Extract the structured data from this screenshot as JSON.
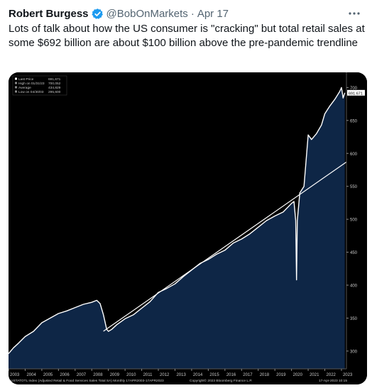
{
  "tweet": {
    "author": "Robert Burgess",
    "handle": "@BobOnMarkets",
    "separator": "·",
    "date": "Apr 17",
    "text": "Lots of talk about how the US consumer is \"cracking\" but total retail sales at some $692 billion are about $100 billion above the pre-pandemic trendline",
    "more_icon": "more-horizontal-icon",
    "verified_icon": "verified-badge-icon",
    "colors": {
      "verified": "#1d9bf0",
      "secondary_text": "#536471",
      "chart_fill": "#0e2646",
      "chart_line": "#ffffff"
    }
  },
  "chart_data": {
    "type": "area",
    "title": "",
    "legend": [
      {
        "label": "Last Price",
        "value": "691,671"
      },
      {
        "label": "High on 01/31/23",
        "value": "700,052"
      },
      {
        "label": "Average",
        "value": "434,829"
      },
      {
        "label": "Low on 04/30/03",
        "value": "295,600"
      }
    ],
    "last_price_tag": "691.671",
    "xlabel": "",
    "ylabel": "",
    "x_ticks": [
      "2003",
      "2004",
      "2005",
      "2006",
      "2007",
      "2008",
      "2009",
      "2010",
      "2011",
      "2012",
      "2013",
      "2014",
      "2015",
      "2016",
      "2017",
      "2018",
      "2019",
      "2020",
      "2021",
      "2022",
      "2023"
    ],
    "y_ticks": [
      300,
      350,
      400,
      450,
      500,
      550,
      600,
      650,
      700
    ],
    "ylim": [
      273,
      723
    ],
    "xlim": [
      2003.0,
      2023.3
    ],
    "grid": false,
    "series": [
      {
        "x": [
          2003.0,
          2003.3,
          2003.6,
          2004.0,
          2004.5,
          2005.0,
          2005.5,
          2006.0,
          2006.5,
          2007.0,
          2007.5,
          2008.0,
          2008.3,
          2008.5,
          2008.7,
          2008.9,
          2009.0,
          2009.2,
          2009.5,
          2010.0,
          2010.5,
          2011.0,
          2011.5,
          2012.0,
          2012.5,
          2013.0,
          2013.5,
          2014.0,
          2014.5,
          2015.0,
          2015.5,
          2016.0,
          2016.5,
          2017.0,
          2017.5,
          2018.0,
          2018.5,
          2019.0,
          2019.5,
          2020.0,
          2020.15,
          2020.25,
          2020.3,
          2020.35,
          2020.5,
          2020.75,
          2021.0,
          2021.2,
          2021.5,
          2021.8,
          2022.0,
          2022.3,
          2022.6,
          2022.9,
          2023.0,
          2023.1,
          2023.2
        ],
        "values": [
          296,
          305,
          312,
          322,
          330,
          343,
          350,
          357,
          361,
          366,
          371,
          374,
          377,
          372,
          355,
          333,
          330,
          333,
          340,
          349,
          355,
          365,
          375,
          389,
          395,
          402,
          413,
          423,
          433,
          439,
          447,
          453,
          464,
          470,
          478,
          488,
          498,
          505,
          511,
          524,
          527,
          498,
          408,
          498,
          540,
          550,
          628,
          621,
          630,
          643,
          660,
          672,
          682,
          694,
          700,
          684,
          692
        ]
      },
      {
        "x": [
          2008.7,
          2023.3
        ],
        "values": [
          330,
          587
        ]
      }
    ],
    "footer_left": "USTATOTL Index (Adjusted Retail & Food Services Sales Total SA)  Monthly 17APR2003-17APR2023",
    "footer_mid": "Copyright© 2023 Bloomberg Finance L.P.",
    "footer_right": "17-Apr-2023 10:15"
  }
}
